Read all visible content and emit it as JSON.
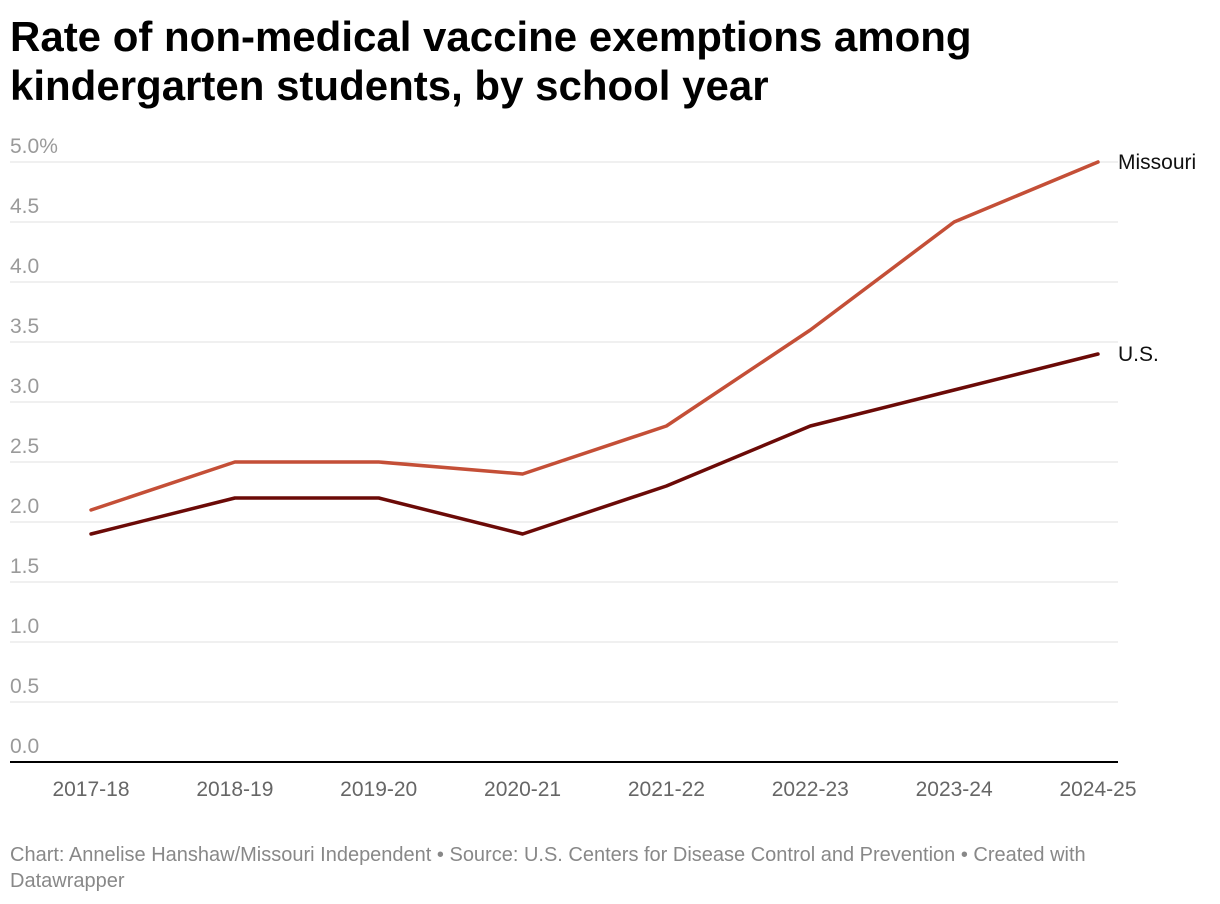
{
  "title": "Rate of non-medical vaccine exemptions among kindergarten students, by school year",
  "footer": "Chart: Annelise Hanshaw/Missouri Independent • Source: U.S. Centers for Disease Control and Prevention • Created with Datawrapper",
  "colors": {
    "missouri": "#c44f37",
    "us": "#6b0a07",
    "grid": "#e0e0e0",
    "tick": "#9a9a9a",
    "xtick": "#666666",
    "axis": "#000000"
  },
  "chart_data": {
    "type": "line",
    "title": "Rate of non-medical vaccine exemptions among kindergarten students, by school year",
    "xlabel": "",
    "ylabel": "",
    "categories": [
      "2017-18",
      "2018-19",
      "2019-20",
      "2020-21",
      "2021-22",
      "2022-23",
      "2023-24",
      "2024-25"
    ],
    "ylim": [
      0,
      5
    ],
    "yticks": [
      0,
      0.5,
      1,
      1.5,
      2,
      2.5,
      3,
      3.5,
      4,
      4.5,
      5
    ],
    "ytick_labels": [
      "0.0",
      "0.5",
      "1.0",
      "1.5",
      "2.0",
      "2.5",
      "3.0",
      "3.5",
      "4.0",
      "4.5",
      "5.0%"
    ],
    "grid": true,
    "legend": "direct labels at line ends",
    "series": [
      {
        "name": "Missouri",
        "color": "#c44f37",
        "values": [
          2.1,
          2.5,
          2.5,
          2.4,
          2.8,
          3.6,
          4.5,
          5.0
        ]
      },
      {
        "name": "U.S.",
        "color": "#6b0a07",
        "values": [
          1.9,
          2.2,
          2.2,
          1.9,
          2.3,
          2.8,
          3.1,
          3.4
        ]
      }
    ]
  }
}
